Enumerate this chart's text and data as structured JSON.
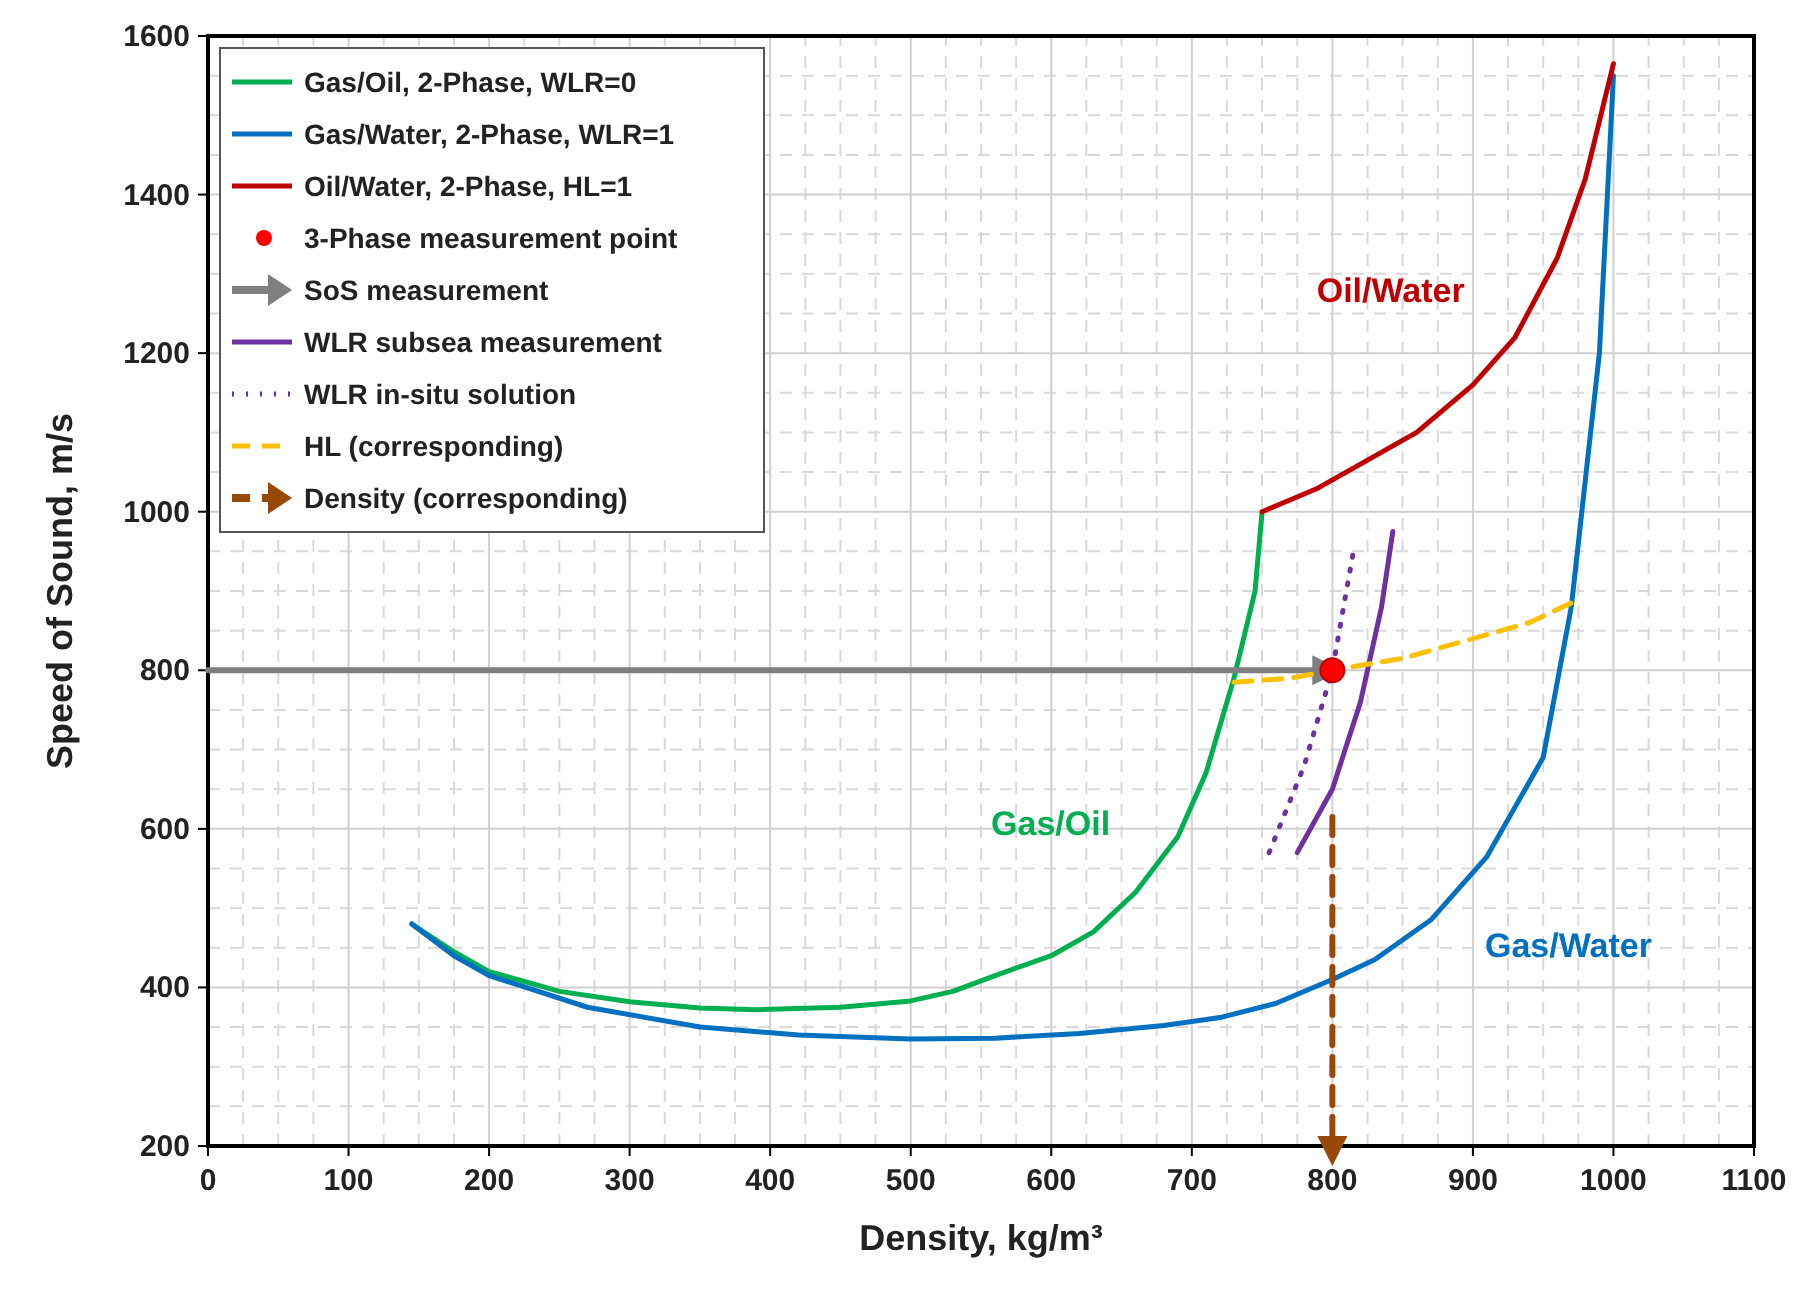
{
  "chart_data": {
    "type": "line",
    "xlabel": "Density, kg/m³",
    "ylabel": "Speed of Sound, m/s",
    "xlim": [
      0,
      1100
    ],
    "xticks": [
      0,
      100,
      200,
      300,
      400,
      500,
      600,
      700,
      800,
      900,
      1000,
      1100
    ],
    "ylim": [
      200,
      1600
    ],
    "yticks": [
      200,
      400,
      600,
      800,
      1000,
      1200,
      1400,
      1600
    ],
    "grid": true,
    "legend": "top left",
    "series": [
      {
        "name": "Gas/Oil, 2-Phase, WLR=0",
        "color": "#00b050",
        "x": [
          145,
          175,
          200,
          250,
          300,
          350,
          390,
          450,
          500,
          530,
          560,
          600,
          630,
          660,
          690,
          710,
          730,
          745,
          750
        ],
        "values": [
          480,
          445,
          420,
          395,
          382,
          374,
          372,
          375,
          383,
          395,
          415,
          440,
          470,
          520,
          590,
          670,
          790,
          900,
          1000
        ]
      },
      {
        "name": "Gas/Water, 2-Phase, WLR=1",
        "color": "#0070c0",
        "x": [
          145,
          175,
          200,
          270,
          350,
          420,
          500,
          560,
          620,
          680,
          720,
          760,
          800,
          830,
          870,
          910,
          950,
          970,
          990,
          1000
        ],
        "values": [
          480,
          440,
          415,
          375,
          350,
          340,
          335,
          336,
          342,
          352,
          362,
          380,
          410,
          435,
          485,
          565,
          690,
          880,
          1200,
          1550
        ]
      },
      {
        "name": "Oil/Water, 2-Phase, HL=1",
        "color": "#c00000",
        "x": [
          750,
          790,
          820,
          860,
          900,
          930,
          960,
          980,
          1000
        ],
        "values": [
          1000,
          1030,
          1060,
          1100,
          1160,
          1220,
          1320,
          1420,
          1565
        ]
      },
      {
        "name": "3-Phase measurement point",
        "type": "scatter",
        "marker": "circle",
        "color": "#ff0000",
        "x": [
          800
        ],
        "values": [
          800
        ]
      },
      {
        "name": "SoS measurement",
        "color": "#7f7f7f",
        "x": [
          0,
          790
        ],
        "values": [
          800,
          800
        ]
      },
      {
        "name": "WLR subsea measurement",
        "color": "#7030a0",
        "x": [
          775,
          800,
          820,
          835,
          843
        ],
        "values": [
          570,
          650,
          760,
          880,
          975
        ]
      },
      {
        "name": "WLR in-situ solution",
        "color": "#7030a0",
        "line_style": "dotted",
        "x": [
          755,
          780,
          800,
          815
        ],
        "values": [
          570,
          680,
          800,
          950
        ]
      },
      {
        "name": "HL (corresponding)",
        "color": "#ffc000",
        "line_style": "dashed",
        "x": [
          730,
          770,
          800,
          850,
          900,
          940,
          970
        ],
        "values": [
          785,
          790,
          800,
          815,
          840,
          860,
          885
        ]
      },
      {
        "name": "Density (corresponding)",
        "color": "#984807",
        "line_style": "dashed",
        "x": [
          800,
          800
        ],
        "values": [
          615,
          205
        ]
      }
    ],
    "annotations": [
      "Gas/Oil",
      "Gas/Water",
      "Oil/Water"
    ]
  }
}
